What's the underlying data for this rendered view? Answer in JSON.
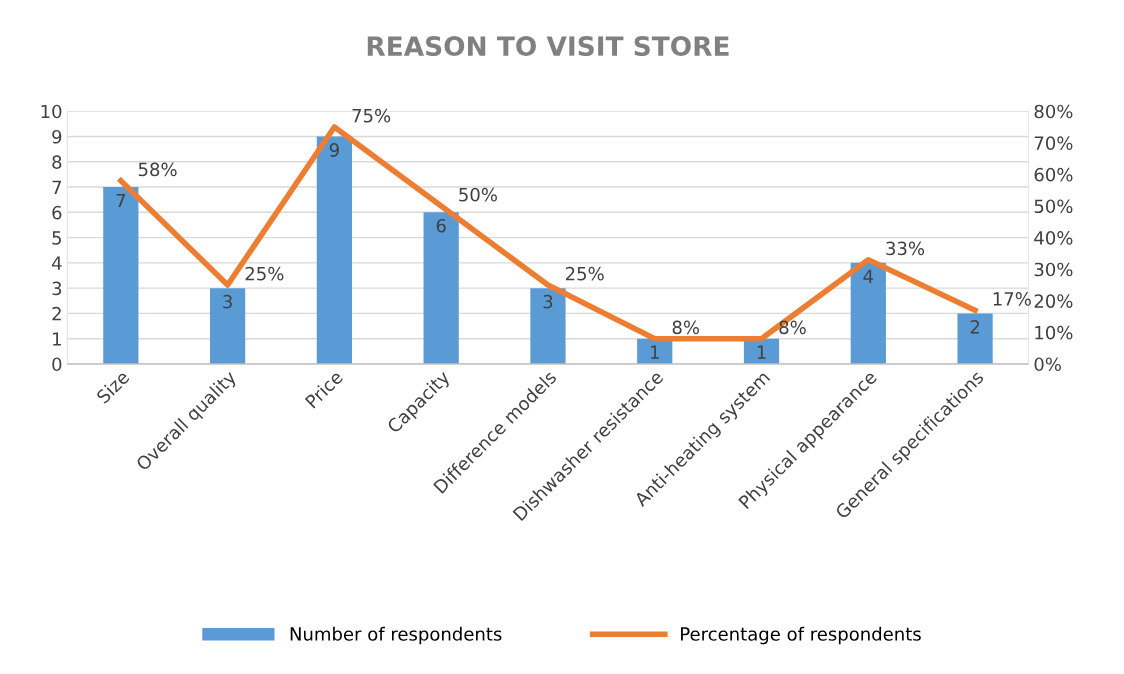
{
  "chart_data": {
    "type": "bar",
    "title": "REASON TO VISIT STORE",
    "categories": [
      "Size",
      "Overall quality",
      "Price",
      "Capacity",
      "Difference models",
      "Dishwasher resistance",
      "Anti-heating system",
      "Physical appearance",
      "General specifications"
    ],
    "series": [
      {
        "name": "Number of respondents",
        "color": "#5b9bd5",
        "values": [
          7,
          3,
          9,
          6,
          3,
          1,
          1,
          4,
          2
        ],
        "value_labels": [
          "7",
          "3",
          "9",
          "6",
          "3",
          "1",
          "1",
          "4",
          "2"
        ]
      },
      {
        "name": "Percentage of respondents",
        "type": "line",
        "axis": "y2",
        "color": "#ed7d31",
        "values": [
          58,
          25,
          75,
          50,
          25,
          8,
          8,
          33,
          17
        ],
        "value_labels": [
          "58%",
          "25%",
          "75%",
          "50%",
          "25%",
          "8%",
          "8%",
          "33%",
          "17%"
        ]
      }
    ],
    "ylim": [
      0,
      10
    ],
    "yticks": [
      0,
      1,
      2,
      3,
      4,
      5,
      6,
      7,
      8,
      9,
      10
    ],
    "y2lim": [
      0,
      80
    ],
    "y2ticks": [
      {
        "value": 0,
        "label": "0%"
      },
      {
        "value": 10,
        "label": "10%"
      },
      {
        "value": 20,
        "label": "20%"
      },
      {
        "value": 30,
        "label": "30%"
      },
      {
        "value": 40,
        "label": "40%"
      },
      {
        "value": 50,
        "label": "50%"
      },
      {
        "value": 60,
        "label": "60%"
      },
      {
        "value": 70,
        "label": "70%"
      },
      {
        "value": 80,
        "label": "80%"
      }
    ],
    "grid": "y",
    "legend": "bottom",
    "marker": "none",
    "line_style": "solid"
  }
}
